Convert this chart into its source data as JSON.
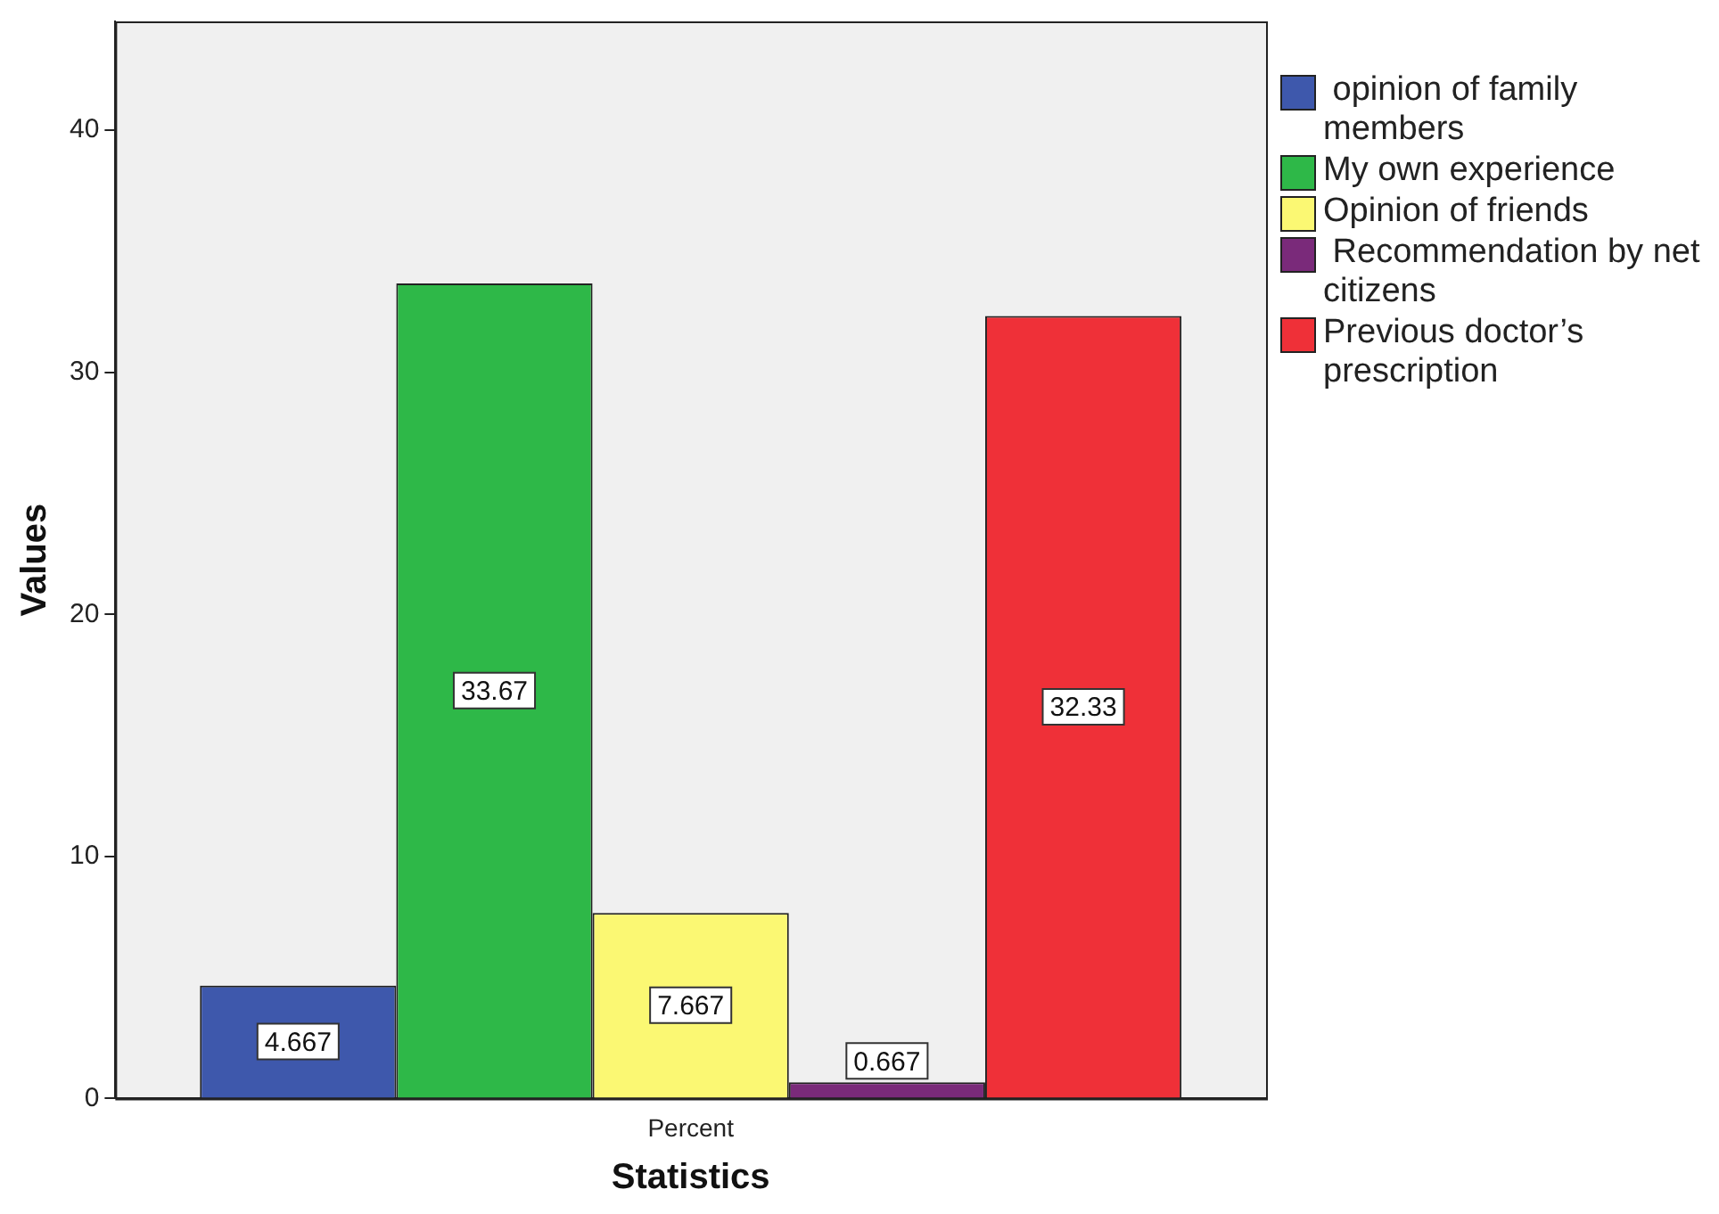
{
  "chart_data": {
    "type": "bar",
    "xlabel": "Statistics",
    "ylabel": "Values",
    "categories": [
      "Percent"
    ],
    "series": [
      {
        "name": " opinion of family members",
        "color": "#3e58ac",
        "values": [
          4.667
        ]
      },
      {
        "name": "My own experience",
        "color": "#2eb848",
        "values": [
          33.67
        ]
      },
      {
        "name": "Opinion of friends",
        "color": "#fbf873",
        "values": [
          7.667
        ]
      },
      {
        "name": " Recommendation by net citizens",
        "color": "#7a2a7a",
        "values": [
          0.667
        ]
      },
      {
        "name": "Previous doctor’s prescription",
        "color": "#ef3038",
        "values": [
          32.33
        ]
      }
    ],
    "ylim": [
      0,
      44.5
    ],
    "yticks": [
      0,
      10,
      20,
      30,
      40
    ],
    "grid": false,
    "legend": "top right",
    "data_labels": true
  }
}
